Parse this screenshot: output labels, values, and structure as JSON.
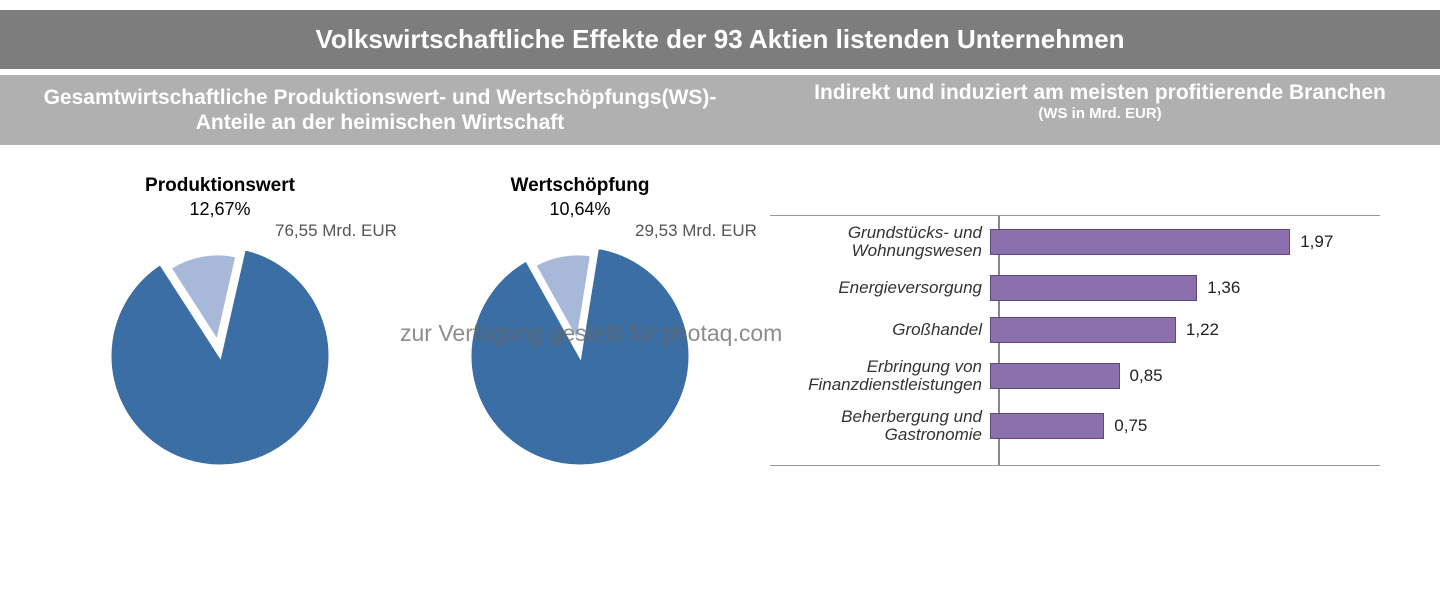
{
  "header": {
    "title": "Volkswirtschaftliche Effekte der 93 Aktien listenden Unternehmen"
  },
  "subheader": {
    "left": "Gesamtwirtschaftliche Produktionswert- und Wertschöpfungs(WS)-Anteile an der heimischen Wirtschaft",
    "right_line1": "Indirekt und induziert am meisten profitierende Branchen",
    "right_line2": "(WS in Mrd. EUR)"
  },
  "watermark": "zur Verfügung gestellt für photaq.com",
  "pies": {
    "pie1": {
      "title": "Produktionswert",
      "percent_label": "12,67%",
      "percent": 12.67,
      "value_label": "76,55 Mrd. EUR",
      "slice_color": "#a8b8d8",
      "main_color": "#3a6ea5",
      "border_color": "#ffffff",
      "radius": 110
    },
    "pie2": {
      "title": "Wertschöpfung",
      "percent_label": "10,64%",
      "percent": 10.64,
      "value_label": "29,53 Mrd. EUR",
      "slice_color": "#a8b8d8",
      "main_color": "#3a6ea5",
      "border_color": "#ffffff",
      "radius": 110
    }
  },
  "bars": {
    "type": "bar",
    "max": 2.1,
    "track_width": 320,
    "bar_color": "#8c6fad",
    "bar_border": "#5a4a75",
    "axis_color": "#888888",
    "font_size": 17,
    "items": [
      {
        "label": "Grundstücks- und Wohnungswesen",
        "value": 1.97,
        "display": "1,97"
      },
      {
        "label": "Energieversorgung",
        "value": 1.36,
        "display": "1,36"
      },
      {
        "label": "Großhandel",
        "value": 1.22,
        "display": "1,22"
      },
      {
        "label": "Erbringung von Finanzdienstleistungen",
        "value": 0.85,
        "display": "0,85"
      },
      {
        "label": "Beherbergung und Gastronomie",
        "value": 0.75,
        "display": "0,75"
      }
    ]
  }
}
